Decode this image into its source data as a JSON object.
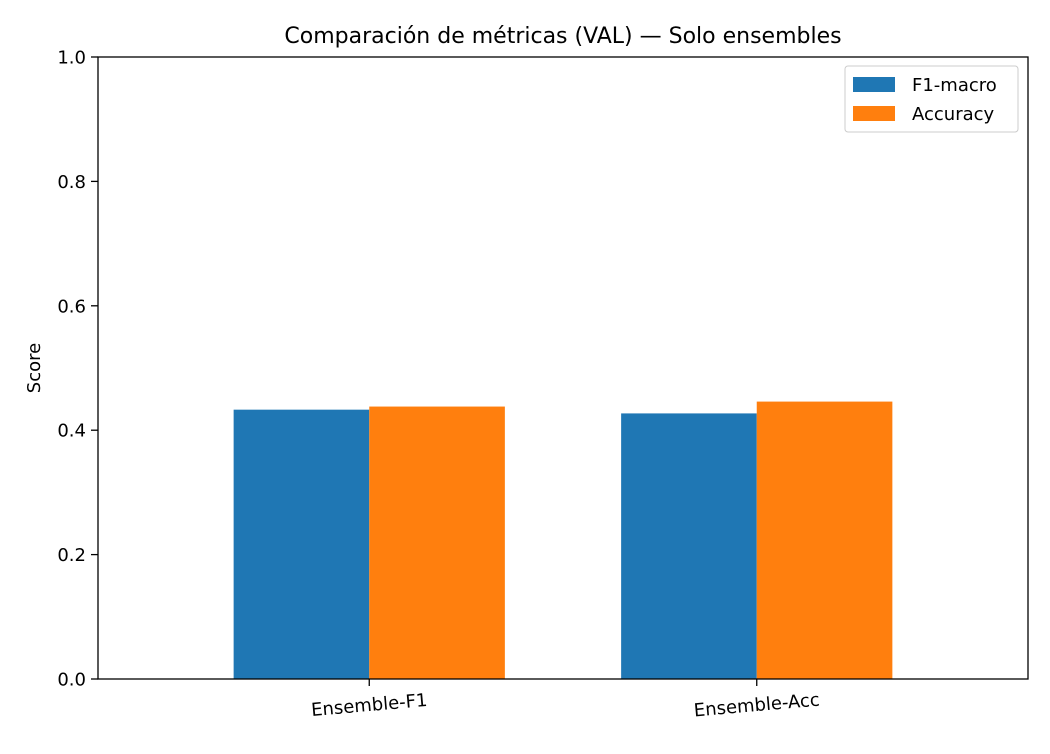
{
  "chart_data": {
    "type": "bar",
    "title": "Comparación de métricas (VAL) — Solo ensembles",
    "xlabel": "",
    "ylabel": "Score",
    "ylim": [
      0,
      1.0
    ],
    "yticks": [
      "0.0",
      "0.2",
      "0.4",
      "0.6",
      "0.8",
      "1.0"
    ],
    "categories": [
      "Ensemble-F1",
      "Ensemble-Acc"
    ],
    "series": [
      {
        "name": "F1-macro",
        "color": "#1f77b4",
        "values": [
          0.433,
          0.427
        ]
      },
      {
        "name": "Accuracy",
        "color": "#ff7f0e",
        "values": [
          0.438,
          0.446
        ]
      }
    ],
    "legend": "top-right",
    "grid": false
  }
}
